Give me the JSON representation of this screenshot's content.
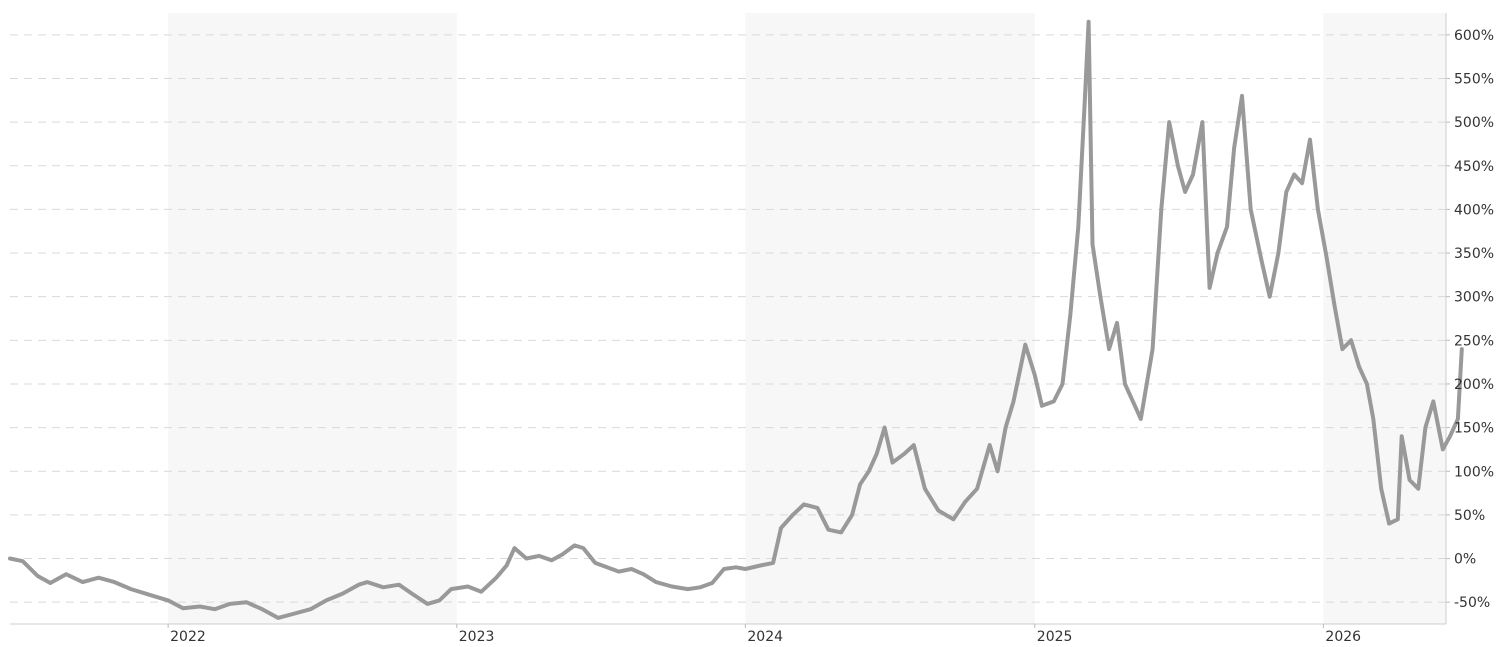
{
  "chart_data": {
    "type": "line",
    "title": "",
    "xlabel": "",
    "ylabel": "",
    "ylim": [
      -75,
      625
    ],
    "x_range": [
      "2021-06-15",
      "2026-06-05"
    ],
    "grid": true,
    "grid_style": "dashed horizontal",
    "year_bands": "alternating light grey shading for 2022, 2024, 2026",
    "y_axis_position": "right",
    "x_ticks": [
      {
        "label": "2022",
        "date": "2022-01-01"
      },
      {
        "label": "2023",
        "date": "2023-01-01"
      },
      {
        "label": "2024",
        "date": "2024-01-01"
      },
      {
        "label": "2025",
        "date": "2025-01-01"
      },
      {
        "label": "2026",
        "date": "2026-01-01"
      }
    ],
    "y_ticks": [
      {
        "label": "600%",
        "value": 600
      },
      {
        "label": "550%",
        "value": 550
      },
      {
        "label": "500%",
        "value": 500
      },
      {
        "label": "450%",
        "value": 450
      },
      {
        "label": "400%",
        "value": 400
      },
      {
        "label": "350%",
        "value": 350
      },
      {
        "label": "300%",
        "value": 300
      },
      {
        "label": "250%",
        "value": 250
      },
      {
        "label": "200%",
        "value": 200
      },
      {
        "label": "150%",
        "value": 150
      },
      {
        "label": "100%",
        "value": 100
      },
      {
        "label": "50%",
        "value": 50
      },
      {
        "label": "0%",
        "value": 0
      },
      {
        "label": "-50%",
        "value": -50
      }
    ],
    "series": [
      {
        "color": "#999999",
        "points": [
          [
            "2021-06-15",
            0
          ],
          [
            "2021-07-01",
            -3
          ],
          [
            "2021-07-20",
            -20
          ],
          [
            "2021-08-05",
            -28
          ],
          [
            "2021-08-25",
            -18
          ],
          [
            "2021-09-15",
            -27
          ],
          [
            "2021-10-05",
            -22
          ],
          [
            "2021-10-25",
            -27
          ],
          [
            "2021-11-15",
            -35
          ],
          [
            "2021-12-10",
            -42
          ],
          [
            "2022-01-01",
            -48
          ],
          [
            "2022-01-20",
            -57
          ],
          [
            "2022-02-10",
            -55
          ],
          [
            "2022-03-01",
            -58
          ],
          [
            "2022-03-20",
            -52
          ],
          [
            "2022-04-10",
            -50
          ],
          [
            "2022-04-30",
            -58
          ],
          [
            "2022-05-20",
            -68
          ],
          [
            "2022-06-10",
            -63
          ],
          [
            "2022-06-30",
            -58
          ],
          [
            "2022-07-20",
            -48
          ],
          [
            "2022-08-10",
            -40
          ],
          [
            "2022-08-30",
            -30
          ],
          [
            "2022-09-10",
            -27
          ],
          [
            "2022-09-30",
            -33
          ],
          [
            "2022-10-20",
            -30
          ],
          [
            "2022-11-05",
            -40
          ],
          [
            "2022-11-25",
            -52
          ],
          [
            "2022-12-10",
            -48
          ],
          [
            "2022-12-25",
            -35
          ],
          [
            "2023-01-15",
            -32
          ],
          [
            "2023-02-01",
            -38
          ],
          [
            "2023-02-20",
            -22
          ],
          [
            "2023-03-05",
            -8
          ],
          [
            "2023-03-15",
            12
          ],
          [
            "2023-03-30",
            0
          ],
          [
            "2023-04-15",
            3
          ],
          [
            "2023-05-01",
            -2
          ],
          [
            "2023-05-15",
            5
          ],
          [
            "2023-05-30",
            15
          ],
          [
            "2023-06-10",
            12
          ],
          [
            "2023-06-25",
            -5
          ],
          [
            "2023-07-10",
            -10
          ],
          [
            "2023-07-25",
            -15
          ],
          [
            "2023-08-10",
            -12
          ],
          [
            "2023-08-25",
            -18
          ],
          [
            "2023-09-10",
            -27
          ],
          [
            "2023-09-30",
            -32
          ],
          [
            "2023-10-20",
            -35
          ],
          [
            "2023-11-05",
            -33
          ],
          [
            "2023-11-20",
            -28
          ],
          [
            "2023-12-05",
            -12
          ],
          [
            "2023-12-20",
            -10
          ],
          [
            "2024-01-01",
            -12
          ],
          [
            "2024-01-20",
            -8
          ],
          [
            "2024-02-05",
            -5
          ],
          [
            "2024-02-15",
            35
          ],
          [
            "2024-03-01",
            50
          ],
          [
            "2024-03-15",
            62
          ],
          [
            "2024-04-01",
            58
          ],
          [
            "2024-04-15",
            33
          ],
          [
            "2024-05-01",
            30
          ],
          [
            "2024-05-15",
            50
          ],
          [
            "2024-05-25",
            85
          ],
          [
            "2024-06-05",
            100
          ],
          [
            "2024-06-15",
            120
          ],
          [
            "2024-06-25",
            150
          ],
          [
            "2024-07-05",
            110
          ],
          [
            "2024-07-20",
            120
          ],
          [
            "2024-08-01",
            130
          ],
          [
            "2024-08-15",
            80
          ],
          [
            "2024-09-01",
            55
          ],
          [
            "2024-09-20",
            45
          ],
          [
            "2024-10-05",
            65
          ],
          [
            "2024-10-20",
            80
          ],
          [
            "2024-11-05",
            130
          ],
          [
            "2024-11-15",
            100
          ],
          [
            "2024-11-25",
            150
          ],
          [
            "2024-12-05",
            180
          ],
          [
            "2024-12-20",
            245
          ],
          [
            "2025-01-01",
            210
          ],
          [
            "2025-01-10",
            175
          ],
          [
            "2025-01-25",
            180
          ],
          [
            "2025-02-05",
            200
          ],
          [
            "2025-02-15",
            280
          ],
          [
            "2025-02-25",
            380
          ],
          [
            "2025-03-05",
            520
          ],
          [
            "2025-03-10",
            615
          ],
          [
            "2025-03-15",
            360
          ],
          [
            "2025-03-25",
            300
          ],
          [
            "2025-04-05",
            240
          ],
          [
            "2025-04-15",
            270
          ],
          [
            "2025-04-25",
            200
          ],
          [
            "2025-05-05",
            180
          ],
          [
            "2025-05-15",
            160
          ],
          [
            "2025-05-30",
            240
          ],
          [
            "2025-06-10",
            400
          ],
          [
            "2025-06-20",
            500
          ],
          [
            "2025-07-01",
            450
          ],
          [
            "2025-07-10",
            420
          ],
          [
            "2025-07-20",
            440
          ],
          [
            "2025-08-01",
            500
          ],
          [
            "2025-08-10",
            310
          ],
          [
            "2025-08-20",
            350
          ],
          [
            "2025-09-01",
            380
          ],
          [
            "2025-09-10",
            470
          ],
          [
            "2025-09-20",
            530
          ],
          [
            "2025-10-01",
            400
          ],
          [
            "2025-10-15",
            340
          ],
          [
            "2025-10-25",
            300
          ],
          [
            "2025-11-05",
            350
          ],
          [
            "2025-11-15",
            420
          ],
          [
            "2025-11-25",
            440
          ],
          [
            "2025-12-05",
            430
          ],
          [
            "2025-12-15",
            480
          ],
          [
            "2025-12-25",
            400
          ],
          [
            "2026-01-05",
            345
          ],
          [
            "2026-01-15",
            290
          ],
          [
            "2026-01-25",
            240
          ],
          [
            "2026-02-05",
            250
          ],
          [
            "2026-02-15",
            220
          ],
          [
            "2026-02-25",
            200
          ],
          [
            "2026-03-05",
            160
          ],
          [
            "2026-03-15",
            80
          ],
          [
            "2026-03-25",
            40
          ],
          [
            "2026-04-05",
            45
          ],
          [
            "2026-04-10",
            140
          ],
          [
            "2026-04-20",
            90
          ],
          [
            "2026-05-01",
            80
          ],
          [
            "2026-05-10",
            150
          ],
          [
            "2026-05-20",
            180
          ],
          [
            "2026-06-01",
            125
          ],
          [
            "2026-06-10",
            140
          ],
          [
            "2026-06-20",
            160
          ],
          [
            "2026-06-25",
            240
          ]
        ]
      }
    ]
  }
}
